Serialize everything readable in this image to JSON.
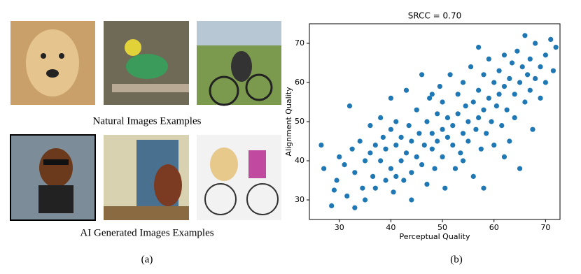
{
  "panel_a": {
    "caption_natural": "Natural Images Examples",
    "caption_ai": "AI Generated Images Examples",
    "label": "(a)"
  },
  "panel_b": {
    "label": "(b)"
  },
  "chart_data": {
    "type": "scatter",
    "title": "SRCC = 0.70",
    "x_label": "Perceptual Quality",
    "y_label": "Alignment Quality",
    "color": "#1f77b4",
    "xlim": [
      24.2,
      72.8
    ],
    "ylim": [
      25,
      75
    ],
    "xticks": [
      30,
      40,
      50,
      60,
      70
    ],
    "yticks": [
      30,
      40,
      50,
      60,
      70
    ],
    "x": [
      26.5,
      27,
      28.5,
      29,
      29.5,
      30,
      31,
      31.5,
      32,
      32.5,
      33,
      33,
      34,
      34.5,
      35,
      35,
      36,
      36,
      36.5,
      37,
      37,
      38,
      38,
      38.5,
      39,
      39,
      40,
      40,
      40,
      40.5,
      41,
      41,
      42,
      42,
      42.5,
      43,
      43,
      43.5,
      44,
      44,
      45,
      45,
      45.5,
      46,
      46,
      46.5,
      47,
      47,
      47.5,
      48,
      48,
      48.5,
      49,
      49,
      49.5,
      50,
      50,
      50,
      50.5,
      51,
      51,
      51.5,
      52,
      52,
      52.5,
      53,
      53,
      53.5,
      54,
      54,
      54.5,
      55,
      55,
      55.5,
      56,
      56,
      56.5,
      57,
      57,
      57.5,
      58,
      58,
      58.5,
      59,
      59,
      59.5,
      60,
      60,
      60.5,
      61,
      61,
      61.5,
      62,
      62,
      62.5,
      63,
      63,
      63.5,
      64,
      64,
      64.5,
      65,
      65,
      65.5,
      66,
      66,
      66.5,
      67,
      67,
      67.5,
      68,
      68,
      69,
      69,
      70,
      70,
      71,
      71.5,
      72,
      58,
      54,
      44,
      48,
      41,
      62,
      57
    ],
    "values": [
      44,
      38,
      28.5,
      32.5,
      35,
      41,
      39,
      31,
      54,
      43,
      28,
      37,
      45,
      33,
      40,
      30,
      49,
      42,
      36,
      44,
      33,
      51,
      40,
      46,
      35,
      43,
      56,
      48,
      38,
      32,
      44,
      50,
      40,
      46,
      35,
      58,
      42,
      49,
      37,
      45,
      53,
      41,
      47,
      62,
      39,
      44,
      50,
      34,
      56,
      43,
      47,
      38,
      52,
      45,
      59,
      41,
      48,
      55,
      33,
      46,
      51,
      62,
      44,
      49,
      38,
      57,
      52,
      42,
      47,
      60,
      54,
      45,
      50,
      64,
      36,
      55,
      48,
      58,
      51,
      43,
      62,
      53,
      47,
      56,
      66,
      50,
      60,
      44,
      54,
      63,
      57,
      49,
      67,
      59,
      53,
      61,
      45,
      65,
      57,
      51,
      68,
      60,
      38,
      64,
      55,
      72,
      62,
      58,
      66,
      48,
      61,
      70,
      64,
      56,
      67,
      60,
      71,
      63,
      69,
      33,
      40,
      30,
      57,
      36,
      41,
      69
    ]
  }
}
